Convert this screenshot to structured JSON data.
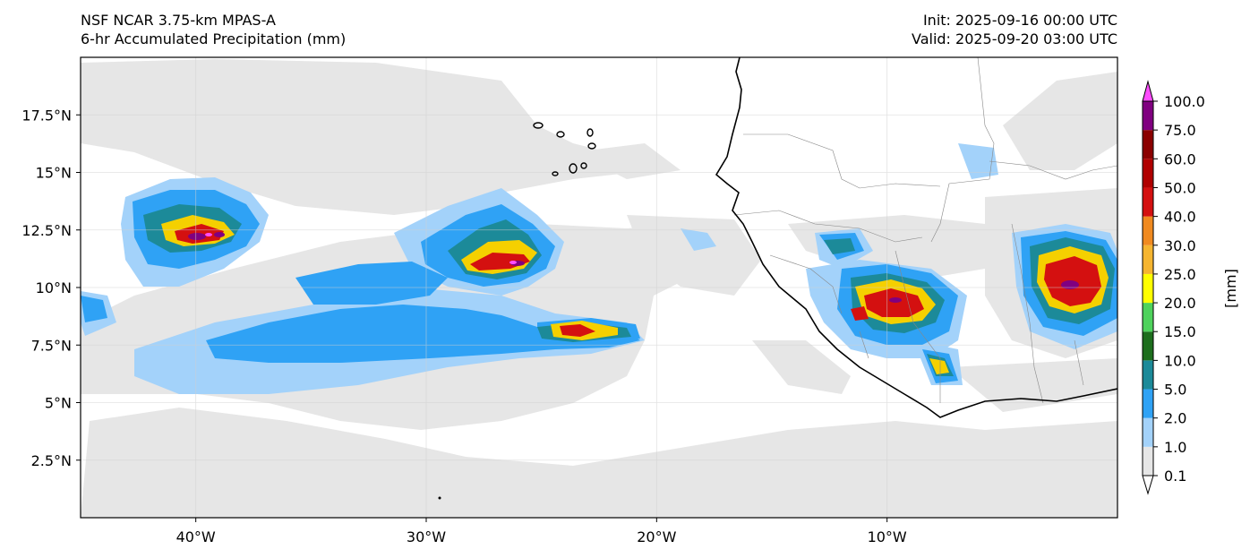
{
  "header": {
    "model": "NSF NCAR 3.75-km MPAS-A",
    "field": "6-hr Accumulated Precipitation (mm)",
    "init": "Init: 2025-09-16 00:00 UTC",
    "valid": "Valid: 2025-09-20 03:00 UTC"
  },
  "map": {
    "lon_ticks": [
      {
        "lon": -40,
        "label": "40°W"
      },
      {
        "lon": -30,
        "label": "30°W"
      },
      {
        "lon": -20,
        "label": "20°W"
      },
      {
        "lon": -10,
        "label": "10°W"
      }
    ],
    "lat_ticks": [
      {
        "lat": 17.5,
        "label": "17.5°N"
      },
      {
        "lat": 15,
        "label": "15°N"
      },
      {
        "lat": 12.5,
        "label": "12.5°N"
      },
      {
        "lat": 10,
        "label": "10°N"
      },
      {
        "lat": 7.5,
        "label": "7.5°N"
      },
      {
        "lat": 5,
        "label": "5°N"
      },
      {
        "lat": 2.5,
        "label": "2.5°N"
      }
    ],
    "lon_range": [
      -45,
      0
    ],
    "lat_range": [
      0,
      20
    ],
    "gridlines": true
  },
  "colorbar": {
    "unit_label": "[mm]",
    "levels": [
      {
        "label": "0.1",
        "color": "#e6e6e6"
      },
      {
        "label": "1.0",
        "color": "#a3d2fa"
      },
      {
        "label": "2.0",
        "color": "#2fa2f5"
      },
      {
        "label": "5.0",
        "color": "#1c8a99"
      },
      {
        "label": "10.0",
        "color": "#1d6e1d"
      },
      {
        "label": "15.0",
        "color": "#4ed25c"
      },
      {
        "label": "20.0",
        "color": "#ffff00"
      },
      {
        "label": "25.0",
        "color": "#f5b530"
      },
      {
        "label": "30.0",
        "color": "#f08a20"
      },
      {
        "label": "40.0",
        "color": "#d41010"
      },
      {
        "label": "50.0",
        "color": "#b00000"
      },
      {
        "label": "60.0",
        "color": "#8b0000"
      },
      {
        "label": "75.0",
        "color": "#800080"
      },
      {
        "label": "100.0",
        "color": "#ff4dff"
      }
    ]
  }
}
